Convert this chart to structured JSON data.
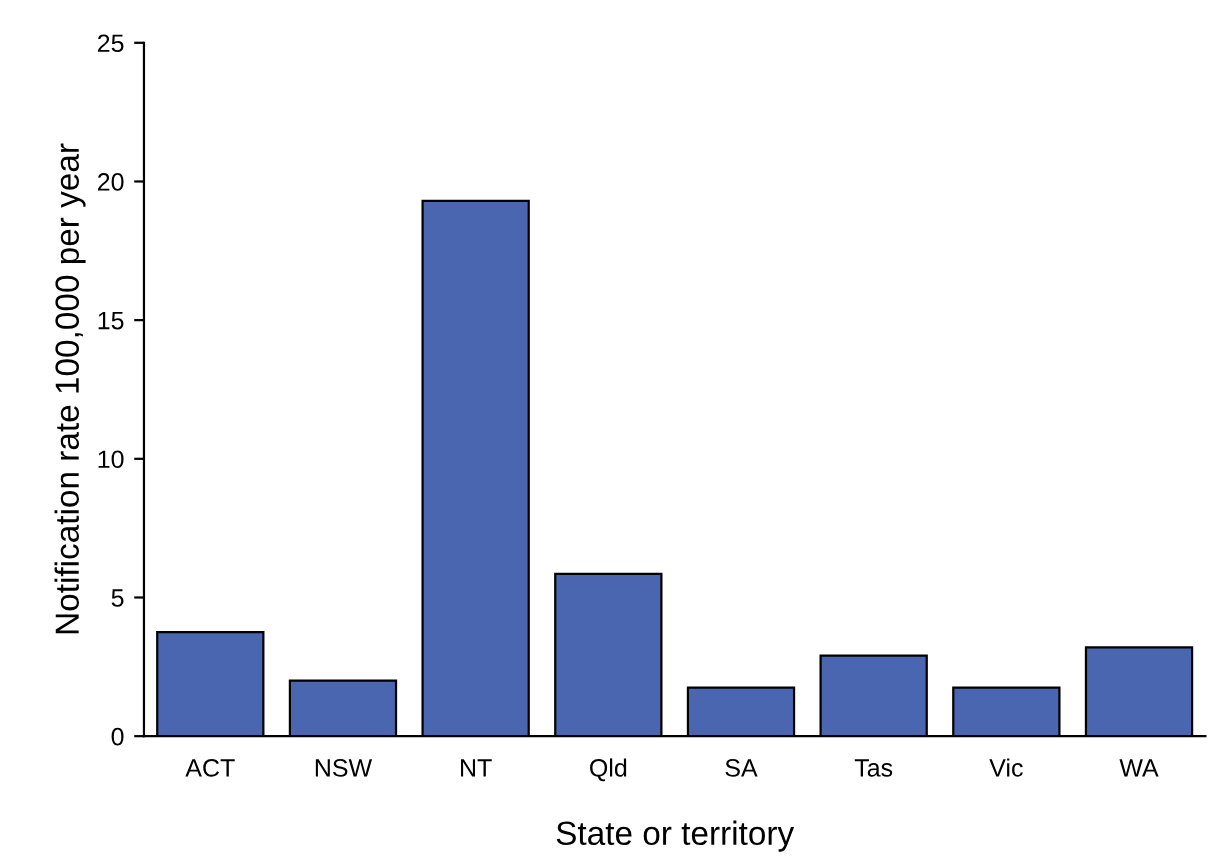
{
  "chart_data": {
    "type": "bar",
    "xlabel": "State or territory",
    "ylabel": "Notification rate 100,000 per year",
    "categories": [
      "ACT",
      "NSW",
      "NT",
      "Qld",
      "SA",
      "Tas",
      "Vic",
      "WA"
    ],
    "values": [
      3.75,
      2.0,
      19.3,
      5.85,
      1.75,
      2.9,
      1.75,
      3.2
    ],
    "color": "#4a66b0",
    "ylim": [
      0,
      25
    ],
    "yticks": [
      0,
      5,
      10,
      15,
      20,
      25
    ],
    "grid": false
  }
}
